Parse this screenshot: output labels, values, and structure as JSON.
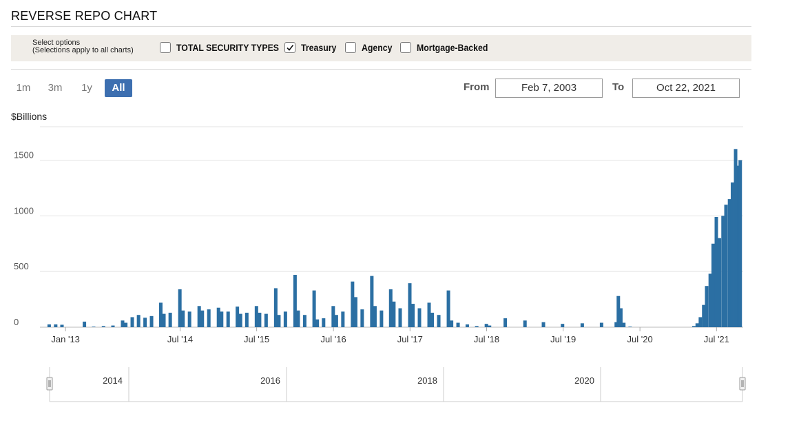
{
  "header": {
    "title": "REVERSE REPO CHART"
  },
  "options": {
    "help_line1": "Select options",
    "help_line2": "(Selections apply to all charts)",
    "items": [
      {
        "label": "TOTAL SECURITY TYPES",
        "checked": false
      },
      {
        "label": "Treasury",
        "checked": true
      },
      {
        "label": "Agency",
        "checked": false
      },
      {
        "label": "Mortgage-Backed",
        "checked": false
      }
    ]
  },
  "range": {
    "buttons": [
      {
        "label": "1m",
        "active": false
      },
      {
        "label": "3m",
        "active": false
      },
      {
        "label": "1y",
        "active": false
      },
      {
        "label": "All",
        "active": true
      }
    ],
    "from_label": "From",
    "from_value": "Feb 7, 2003",
    "to_label": "To",
    "to_value": "Oct 22, 2021"
  },
  "chart_data": {
    "type": "bar",
    "ylabel": "$Billions",
    "ylim": [
      0,
      1800
    ],
    "yticks": [
      0,
      500,
      1000,
      1500
    ],
    "xlim": [
      "2012-09-01",
      "2021-11-05"
    ],
    "xticks": [
      {
        "date": "2013-01-01",
        "label": "Jan '13"
      },
      {
        "date": "2014-07-01",
        "label": "Jul '14"
      },
      {
        "date": "2015-07-01",
        "label": "Jul '15"
      },
      {
        "date": "2016-07-01",
        "label": "Jul '16"
      },
      {
        "date": "2017-07-01",
        "label": "Jul '17"
      },
      {
        "date": "2018-07-01",
        "label": "Jul '18"
      },
      {
        "date": "2019-07-01",
        "label": "Jul '19"
      },
      {
        "date": "2020-07-01",
        "label": "Jul '20"
      },
      {
        "date": "2021-07-01",
        "label": "Jul '21"
      }
    ],
    "grid": true,
    "color": "#2b6fa3",
    "series": [
      {
        "points": [
          [
            "2012-10-15",
            25
          ],
          [
            "2012-11-15",
            25
          ],
          [
            "2012-12-15",
            22
          ],
          [
            "2013-02-15",
            0
          ],
          [
            "2013-04-01",
            50
          ],
          [
            "2013-05-15",
            5
          ],
          [
            "2013-07-01",
            10
          ],
          [
            "2013-08-15",
            15
          ],
          [
            "2013-09-30",
            60
          ],
          [
            "2013-10-15",
            40
          ],
          [
            "2013-11-15",
            90
          ],
          [
            "2013-12-15",
            110
          ],
          [
            "2014-01-15",
            85
          ],
          [
            "2014-02-15",
            100
          ],
          [
            "2014-03-31",
            220
          ],
          [
            "2014-04-15",
            120
          ],
          [
            "2014-05-15",
            130
          ],
          [
            "2014-06-30",
            340
          ],
          [
            "2014-07-15",
            150
          ],
          [
            "2014-08-15",
            140
          ],
          [
            "2014-09-30",
            190
          ],
          [
            "2014-10-15",
            150
          ],
          [
            "2014-11-15",
            160
          ],
          [
            "2014-12-31",
            175
          ],
          [
            "2015-01-15",
            140
          ],
          [
            "2015-02-15",
            140
          ],
          [
            "2015-03-31",
            185
          ],
          [
            "2015-04-15",
            120
          ],
          [
            "2015-05-15",
            130
          ],
          [
            "2015-06-30",
            190
          ],
          [
            "2015-07-15",
            130
          ],
          [
            "2015-08-15",
            120
          ],
          [
            "2015-09-30",
            350
          ],
          [
            "2015-10-15",
            110
          ],
          [
            "2015-11-15",
            140
          ],
          [
            "2015-12-31",
            470
          ],
          [
            "2016-01-15",
            150
          ],
          [
            "2016-02-15",
            110
          ],
          [
            "2016-03-31",
            330
          ],
          [
            "2016-04-15",
            70
          ],
          [
            "2016-05-15",
            80
          ],
          [
            "2016-06-30",
            190
          ],
          [
            "2016-07-15",
            110
          ],
          [
            "2016-08-15",
            140
          ],
          [
            "2016-09-30",
            410
          ],
          [
            "2016-10-15",
            270
          ],
          [
            "2016-11-15",
            160
          ],
          [
            "2016-12-31",
            460
          ],
          [
            "2017-01-15",
            190
          ],
          [
            "2017-02-15",
            150
          ],
          [
            "2017-03-31",
            340
          ],
          [
            "2017-04-15",
            230
          ],
          [
            "2017-05-15",
            170
          ],
          [
            "2017-06-30",
            395
          ],
          [
            "2017-07-15",
            210
          ],
          [
            "2017-08-15",
            170
          ],
          [
            "2017-09-30",
            220
          ],
          [
            "2017-10-15",
            130
          ],
          [
            "2017-11-15",
            110
          ],
          [
            "2017-12-31",
            330
          ],
          [
            "2018-01-15",
            60
          ],
          [
            "2018-02-15",
            40
          ],
          [
            "2018-03-31",
            25
          ],
          [
            "2018-05-15",
            10
          ],
          [
            "2018-06-30",
            30
          ],
          [
            "2018-07-15",
            15
          ],
          [
            "2018-09-28",
            80
          ],
          [
            "2018-12-31",
            60
          ],
          [
            "2019-03-29",
            45
          ],
          [
            "2019-06-28",
            30
          ],
          [
            "2019-09-30",
            35
          ],
          [
            "2019-12-31",
            40
          ],
          [
            "2020-03-10",
            45
          ],
          [
            "2020-03-20",
            280
          ],
          [
            "2020-04-01",
            170
          ],
          [
            "2020-04-15",
            40
          ],
          [
            "2020-05-15",
            5
          ],
          [
            "2021-03-15",
            10
          ],
          [
            "2021-03-31",
            35
          ],
          [
            "2021-04-15",
            90
          ],
          [
            "2021-05-01",
            200
          ],
          [
            "2021-05-15",
            370
          ],
          [
            "2021-06-01",
            480
          ],
          [
            "2021-06-15",
            750
          ],
          [
            "2021-06-30",
            990
          ],
          [
            "2021-07-15",
            800
          ],
          [
            "2021-08-01",
            1000
          ],
          [
            "2021-08-15",
            1100
          ],
          [
            "2021-09-01",
            1150
          ],
          [
            "2021-09-15",
            1300
          ],
          [
            "2021-09-30",
            1600
          ],
          [
            "2021-10-15",
            1450
          ],
          [
            "2021-10-22",
            1500
          ]
        ]
      }
    ]
  },
  "navigator": {
    "labels": [
      "2014",
      "2016",
      "2018",
      "2020"
    ]
  }
}
